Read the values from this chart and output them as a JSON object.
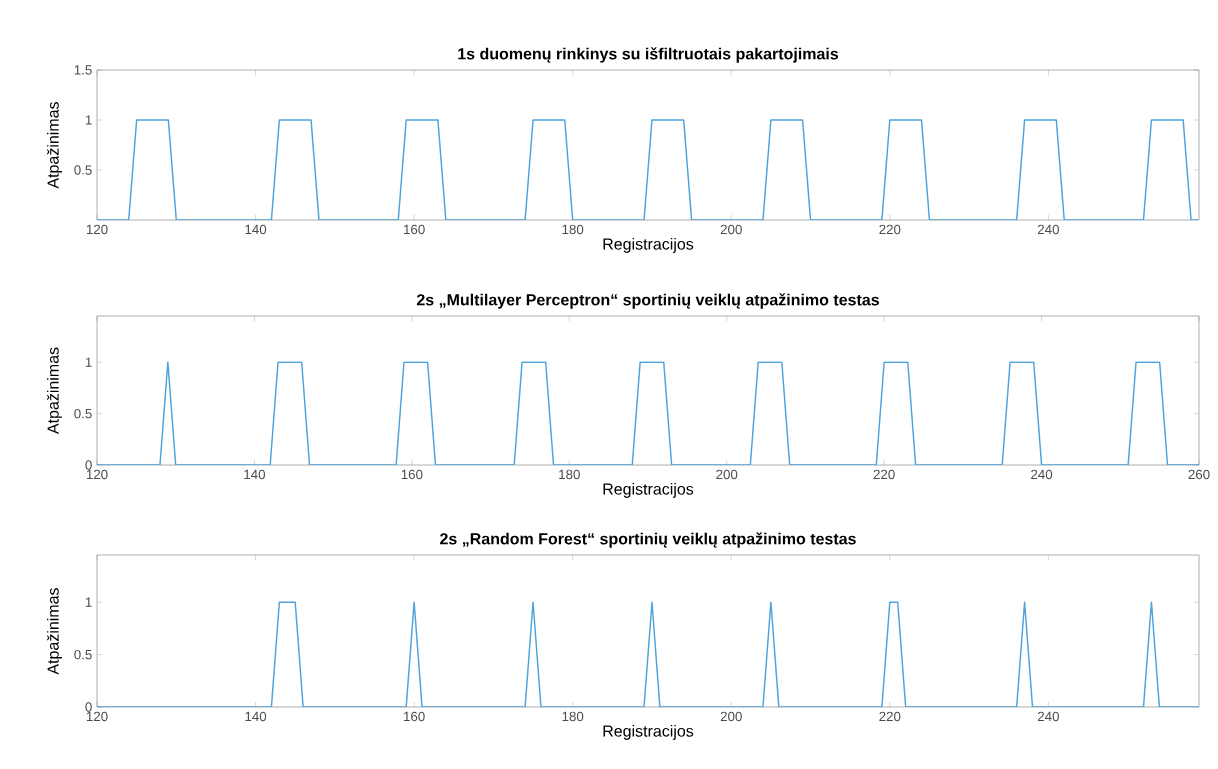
{
  "chart_data": [
    {
      "type": "line",
      "title": "1s duomenų rinkinys su išfiltruotais pakartojimais",
      "xlabel": "Registracijos",
      "ylabel": "Atpažinimas",
      "color": "#4fa3db",
      "x": [
        120,
        124,
        125,
        129,
        130,
        142,
        143,
        147,
        148,
        158,
        159,
        163,
        164,
        174,
        175,
        179,
        180,
        189,
        190,
        194,
        195,
        204,
        205,
        209,
        210,
        219,
        220,
        224,
        225,
        236,
        237,
        241,
        242,
        252,
        253,
        257,
        258,
        259
      ],
      "values": [
        0,
        0,
        1,
        1,
        0,
        0,
        1,
        1,
        0,
        0,
        1,
        1,
        0,
        0,
        1,
        1,
        0,
        0,
        1,
        1,
        0,
        0,
        1,
        1,
        0,
        0,
        1,
        1,
        0,
        0,
        1,
        1,
        0,
        0,
        1,
        1,
        0,
        0
      ],
      "xlim": [
        120,
        259
      ],
      "ylim": [
        0,
        1.5
      ],
      "xticks": [
        120,
        140,
        160,
        180,
        200,
        220,
        240
      ],
      "yticks": [
        0.5,
        1,
        1.5
      ]
    },
    {
      "type": "line",
      "title": "2s „Multilayer Perceptron“ sportinių veiklų atpažinimo testas",
      "xlabel": "Registracijos",
      "ylabel": "Atpažinimas",
      "color": "#4fa3db",
      "x": [
        120,
        128,
        129,
        130,
        142,
        143,
        146,
        147,
        158,
        159,
        162,
        163,
        173,
        174,
        177,
        178,
        188,
        189,
        192,
        193,
        203,
        204,
        207,
        208,
        219,
        220,
        223,
        224,
        235,
        236,
        239,
        240,
        251,
        252,
        255,
        256,
        260
      ],
      "values": [
        0,
        0,
        1,
        0,
        0,
        1,
        1,
        0,
        0,
        1,
        1,
        0,
        0,
        1,
        1,
        0,
        0,
        1,
        1,
        0,
        0,
        1,
        1,
        0,
        0,
        1,
        1,
        0,
        0,
        1,
        1,
        0,
        0,
        1,
        1,
        0,
        0
      ],
      "xlim": [
        120,
        260
      ],
      "ylim": [
        0,
        1.45
      ],
      "xticks": [
        120,
        140,
        160,
        180,
        200,
        220,
        240,
        260
      ],
      "yticks": [
        0,
        0.5,
        1
      ]
    },
    {
      "type": "line",
      "title": "2s „Random Forest“ sportinių veiklų atpažinimo testas",
      "xlabel": "Registracijos",
      "ylabel": "Atpažinimas",
      "color": "#4fa3db",
      "x": [
        120,
        142,
        143,
        145,
        146,
        159,
        160,
        161,
        174,
        175,
        176,
        189,
        190,
        191,
        204,
        205,
        206,
        219,
        220,
        221,
        222,
        236,
        237,
        238,
        252,
        253,
        254,
        259
      ],
      "values": [
        0,
        0,
        1,
        1,
        0,
        0,
        1,
        0,
        0,
        1,
        0,
        0,
        1,
        0,
        0,
        1,
        0,
        0,
        1,
        1,
        0,
        0,
        1,
        0,
        0,
        1,
        0,
        0
      ],
      "xlim": [
        120,
        259
      ],
      "ylim": [
        0,
        1.45
      ],
      "xticks": [
        120,
        140,
        160,
        180,
        200,
        220,
        240
      ],
      "yticks": [
        0,
        0.5,
        1
      ]
    }
  ]
}
